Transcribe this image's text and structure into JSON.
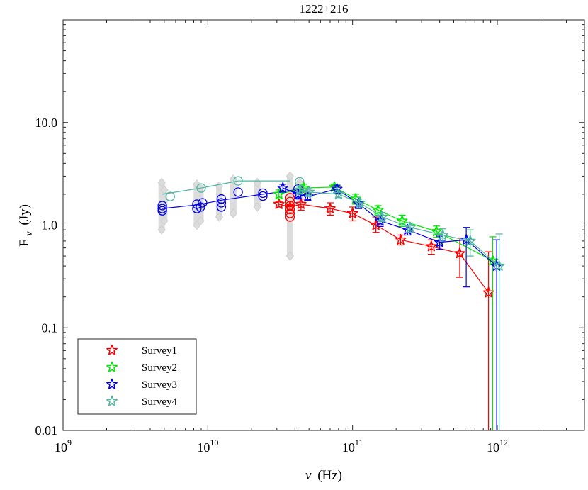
{
  "chart_data": {
    "type": "scatter",
    "title": "1222+216",
    "xlabel": "ν (Hz)",
    "ylabel": "Fν (Jy)",
    "ylabel_main": "F",
    "ylabel_sub": "ν",
    "ylabel_unit": "(Jy)",
    "xlabel_var": "ν",
    "xlabel_unit": "(Hz)",
    "x_scale": "log",
    "y_scale": "log",
    "xlim": [
      1000000000.0,
      4000000000000.0
    ],
    "ylim": [
      0.01,
      100
    ],
    "grid": false,
    "legend_position": "bottom-left",
    "x_ticks": [
      {
        "value": 1000000000.0,
        "base": "10",
        "exp": "9"
      },
      {
        "value": 10000000000.0,
        "base": "10",
        "exp": "10"
      },
      {
        "value": 100000000000.0,
        "base": "10",
        "exp": "11"
      },
      {
        "value": 1000000000000.0,
        "base": "10",
        "exp": "12"
      }
    ],
    "y_ticks": [
      {
        "value": 0.01,
        "label": "0.01"
      },
      {
        "value": 0.1,
        "label": "0.1"
      },
      {
        "value": 1,
        "label": "1.0"
      },
      {
        "value": 10,
        "label": "10.0"
      }
    ],
    "archival": [
      {
        "x": 4800000000.0,
        "ylo": 0.9,
        "yhi": 2.6
      },
      {
        "x": 5000000000.0,
        "ylo": 1.1,
        "yhi": 2.2
      },
      {
        "x": 8400000000.0,
        "ylo": 1.0,
        "yhi": 2.5
      },
      {
        "x": 8900000000.0,
        "ylo": 1.1,
        "yhi": 2.3
      },
      {
        "x": 12000000000.0,
        "ylo": 1.2,
        "yhi": 2.4
      },
      {
        "x": 15000000000.0,
        "ylo": 1.3,
        "yhi": 2.8
      },
      {
        "x": 22000000000.0,
        "ylo": 1.5,
        "yhi": 2.6
      },
      {
        "x": 37000000000.0,
        "ylo": 0.5,
        "yhi": 3.0
      },
      {
        "x": 43000000000.0,
        "ylo": 1.6,
        "yhi": 2.6
      }
    ],
    "circle_series": [
      {
        "name": "circles-blue",
        "color": "#0000e6",
        "points": [
          {
            "x": 4850000000.0,
            "y": 1.45
          },
          {
            "x": 4850000000.0,
            "y": 1.55
          },
          {
            "x": 4850000000.0,
            "y": 1.38
          },
          {
            "x": 8400000000.0,
            "y": 1.45
          },
          {
            "x": 8400000000.0,
            "y": 1.6
          },
          {
            "x": 8900000000.0,
            "y": 1.5
          },
          {
            "x": 9200000000.0,
            "y": 1.65
          },
          {
            "x": 12400000000.0,
            "y": 1.5
          },
          {
            "x": 12400000000.0,
            "y": 1.65
          },
          {
            "x": 12400000000.0,
            "y": 1.8
          },
          {
            "x": 16200000000.0,
            "y": 2.1
          },
          {
            "x": 24000000000.0,
            "y": 1.92
          },
          {
            "x": 24000000000.0,
            "y": 2.05
          },
          {
            "x": 41500000000.0,
            "y": 2.0
          },
          {
            "x": 42000000000.0,
            "y": 2.25
          }
        ]
      },
      {
        "name": "circles-red",
        "color": "#ff0000",
        "points": [
          {
            "x": 37000000000.0,
            "y": 1.2
          },
          {
            "x": 37000000000.0,
            "y": 1.3
          },
          {
            "x": 37000000000.0,
            "y": 1.42
          },
          {
            "x": 37000000000.0,
            "y": 1.55
          },
          {
            "x": 37000000000.0,
            "y": 1.7
          },
          {
            "x": 37000000000.0,
            "y": 1.85
          }
        ]
      },
      {
        "name": "circles-teal",
        "color": "#4fb7a0",
        "points": [
          {
            "x": 5500000000.0,
            "y": 1.9
          },
          {
            "x": 9000000000.0,
            "y": 2.3
          },
          {
            "x": 16200000000.0,
            "y": 2.7
          },
          {
            "x": 43000000000.0,
            "y": 2.65
          }
        ]
      }
    ],
    "connector_lines": [
      {
        "name": "line-blue",
        "color": "#0000e6",
        "x": [
          4850000000.0,
          8600000000.0,
          12400000000.0,
          24000000000.0,
          40000000000.0
        ],
        "y": [
          1.45,
          1.58,
          1.75,
          2.0,
          2.2
        ]
      },
      {
        "name": "line-teal",
        "color": "#4fb7a0",
        "x": [
          4850000000.0,
          9000000000.0,
          16200000000.0,
          37000000000.0
        ],
        "y": [
          2.0,
          2.3,
          2.7,
          2.7
        ]
      }
    ],
    "series": [
      {
        "name": "Survey1",
        "color": "#ff0000",
        "x": [
          31000000000.0,
          37000000000.0,
          44000000000.0,
          70000000000.0,
          100000000000.0,
          145000000000.0,
          215000000000.0,
          350000000000.0,
          550000000000.0,
          870000000000.0
        ],
        "y": [
          1.6,
          1.5,
          1.6,
          1.45,
          1.3,
          1.0,
          0.72,
          0.62,
          0.53,
          0.22
        ],
        "ylo": [
          1.5,
          1.4,
          1.4,
          1.25,
          1.1,
          0.85,
          0.64,
          0.52,
          0.31,
          0.01
        ],
        "yhi": [
          1.7,
          1.6,
          1.8,
          1.65,
          1.5,
          1.2,
          0.8,
          0.72,
          0.75,
          0.55
        ]
      },
      {
        "name": "Survey2",
        "color": "#00e600",
        "x": [
          31000000000.0,
          46000000000.0,
          75000000000.0,
          105000000000.0,
          150000000000.0,
          220000000000.0,
          380000000000.0,
          930000000000.0
        ],
        "y": [
          2.0,
          2.3,
          2.35,
          1.8,
          1.4,
          1.1,
          0.87,
          0.45
        ],
        "ylo": [
          1.8,
          2.1,
          2.2,
          1.6,
          1.25,
          0.97,
          0.76,
          0.01
        ],
        "yhi": [
          2.2,
          2.5,
          2.5,
          2.0,
          1.55,
          1.25,
          0.98,
          0.77
        ]
      },
      {
        "name": "Survey3",
        "color": "#0000e6",
        "x": [
          33000000000.0,
          42000000000.0,
          49000000000.0,
          78000000000.0,
          110000000000.0,
          155000000000.0,
          240000000000.0,
          400000000000.0,
          610000000000.0,
          990000000000.0
        ],
        "y": [
          2.3,
          2.0,
          1.9,
          2.25,
          1.62,
          1.1,
          0.9,
          0.68,
          0.72,
          0.4
        ],
        "ylo": [
          2.1,
          1.8,
          1.75,
          2.05,
          1.45,
          0.97,
          0.8,
          0.58,
          0.25,
          0.01
        ],
        "yhi": [
          2.5,
          2.2,
          2.05,
          2.45,
          1.8,
          1.25,
          1.0,
          0.78,
          0.95,
          0.72
        ]
      },
      {
        "name": "Survey4",
        "color": "#4fb7a0",
        "x": [
          43000000000.0,
          50000000000.0,
          80000000000.0,
          112000000000.0,
          160000000000.0,
          250000000000.0,
          420000000000.0,
          650000000000.0,
          1030000000000.0
        ],
        "y": [
          2.2,
          2.1,
          2.0,
          1.65,
          1.2,
          0.95,
          0.8,
          0.7,
          0.4
        ],
        "ylo": [
          2.0,
          1.9,
          1.85,
          1.5,
          1.08,
          0.85,
          0.7,
          0.5,
          0.01
        ],
        "yhi": [
          2.4,
          2.3,
          2.15,
          1.8,
          1.33,
          1.05,
          0.92,
          0.9,
          0.82
        ]
      }
    ]
  }
}
